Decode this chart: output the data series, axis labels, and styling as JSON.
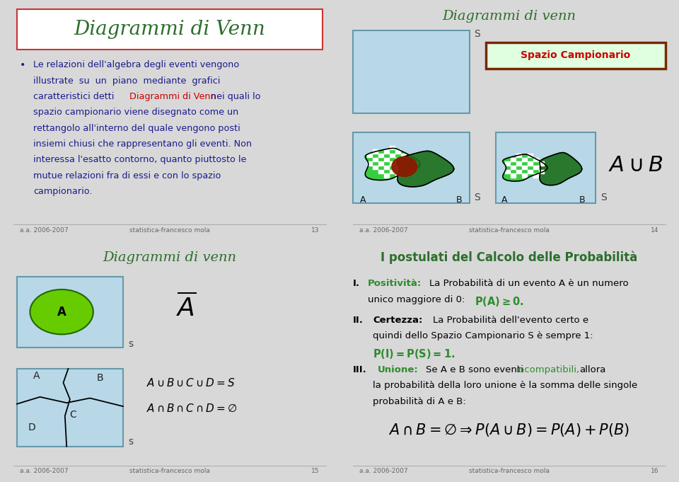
{
  "bg_color": "#d8d8d8",
  "panel_bg": "#ffffff",
  "light_blue": "#b8d8e8",
  "green_title": "#2d6e2d",
  "dark_blue_text": "#1a1a8c",
  "red_text": "#cc0000",
  "orange_text": "#cc6600",
  "green_text": "#2d8c2d",
  "footer_text_color": "#666666",
  "slide_border_color": "#aaaaaa",
  "title1": "Diagrammi di Venn",
  "title2": "Diagrammi di venn",
  "title3": "Diagrammi di venn",
  "title4": "I postulati del Calcolo delle Probabilità",
  "footer_left": "a.a. 2006-2007",
  "footer_center": "statistica-francesco mola",
  "page13": "13",
  "page14": "14",
  "page15": "15",
  "page16": "16",
  "bullet_line1": "Le relazioni dell'algebra degli eventi vengono",
  "bullet_line2": "illustrate  su  un  piano  mediante  grafici",
  "bullet_line3_a": "caratteristici detti ",
  "bullet_line3_b": "Diagrammi di Venn",
  "bullet_line3_c": " nei quali lo",
  "bullet_line4": "spazio campionario viene disegnato come un",
  "bullet_line5": "rettangolo all'interno del quale vengono posti",
  "bullet_line6": "insiemi chiusi che rappresentano gli eventi. Non",
  "bullet_line7": "interessa l'esatto contorno, quanto piuttosto le",
  "bullet_line8": "mutue relazioni fra di essi e con lo spazio",
  "bullet_line9": "campionario."
}
